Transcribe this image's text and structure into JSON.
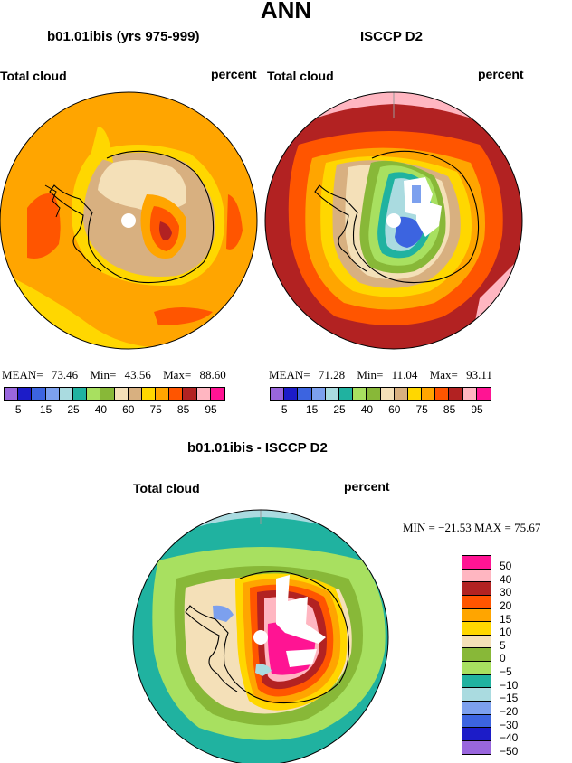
{
  "main_title": "ANN",
  "panels": [
    {
      "title": "b01.01ibis (yrs 975-999)",
      "left_label": "Total cloud",
      "right_label": "percent",
      "stats": {
        "mean_label": "MEAN=",
        "mean": "73.46",
        "min_label": "Min=",
        "min": "43.56",
        "max_label": "Max=",
        "max": "88.60"
      }
    },
    {
      "title": "ISCCP D2",
      "left_label": "Total cloud",
      "right_label": "percent",
      "stats": {
        "mean_label": "MEAN=",
        "mean": "71.28",
        "min_label": "Min=",
        "min": "11.04",
        "max_label": "Max=",
        "max": "93.11"
      }
    }
  ],
  "top_colorbar": {
    "colors": [
      "#9966dd",
      "#1c1cc8",
      "#3c64e0",
      "#7ca0ee",
      "#aadbe0",
      "#20b2a0",
      "#a8e060",
      "#88b838",
      "#f4e0b8",
      "#d8b080",
      "#ffd700",
      "#ffa500",
      "#ff5500",
      "#b22222",
      "#ffb6c1",
      "#ff1493"
    ],
    "labels": [
      "5",
      "15",
      "25",
      "40",
      "60",
      "75",
      "85",
      "95"
    ]
  },
  "diff_panel": {
    "title": "b01.01ibis - ISCCP D2",
    "left_label": "Total cloud",
    "right_label": "percent",
    "minmax": "MIN = −21.53  MAX =  75.67"
  },
  "diff_colorbar": {
    "colors": [
      "#ff1493",
      "#ffb6c1",
      "#b22222",
      "#ff5500",
      "#ffa500",
      "#ffd700",
      "#f4e0b8",
      "#88b838",
      "#a8e060",
      "#20b2a0",
      "#aadbe0",
      "#7ca0ee",
      "#3c64e0",
      "#1c1cc8",
      "#9966dd"
    ],
    "labels": [
      "50",
      "40",
      "30",
      "20",
      "15",
      "10",
      "5",
      "0",
      "−5",
      "−10",
      "−15",
      "−20",
      "−30",
      "−40",
      "−50"
    ]
  },
  "map_colors": {
    "land_outline": "#000000",
    "pole_hole": "#ffffff",
    "missing": "#ffffff"
  }
}
